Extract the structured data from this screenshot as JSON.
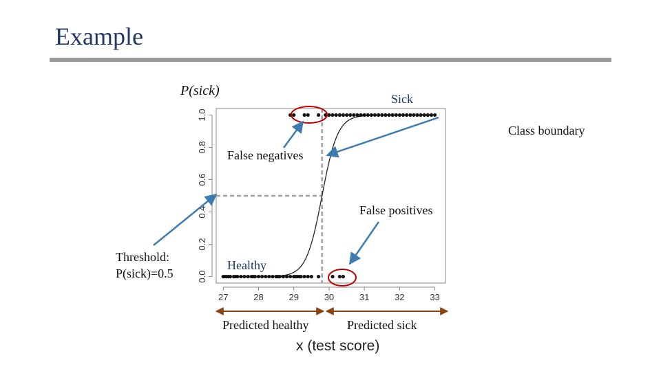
{
  "slide": {
    "title": "Example"
  },
  "chart_data": {
    "type": "scatter",
    "ylabel": "P(sick)",
    "xlabel": "x (test score)",
    "xlim": [
      26.8,
      33.3
    ],
    "ylim": [
      -0.04,
      1.04
    ],
    "x_ticks": [
      27,
      28,
      29,
      30,
      31,
      32,
      33
    ],
    "x_tick_labels": [
      "27",
      "28",
      "29",
      "30",
      "31",
      "32",
      "33"
    ],
    "y_ticks": [
      0.0,
      0.2,
      0.4,
      0.6,
      0.8,
      1.0
    ],
    "y_tick_labels": [
      "0.0",
      "0.2",
      "0.4",
      "0.6",
      "0.8",
      "1.0"
    ],
    "grid": false,
    "curve": {
      "kind": "logistic",
      "midpoint": 29.8,
      "steepness": 4.5
    },
    "threshold": {
      "x": 29.8,
      "y": 0.5
    },
    "series": [
      {
        "name": "Healthy",
        "y": 0,
        "x": [
          27.0,
          27.05,
          27.1,
          27.15,
          27.2,
          27.3,
          27.35,
          27.4,
          27.5,
          27.6,
          27.7,
          27.8,
          27.85,
          27.9,
          28.0,
          28.1,
          28.2,
          28.3,
          28.4,
          28.5,
          28.55,
          28.6,
          28.7,
          28.8,
          28.9,
          29.0,
          29.05,
          29.1,
          29.15,
          29.2,
          29.3,
          29.4,
          29.5,
          29.7,
          30.1,
          30.3,
          30.4
        ]
      },
      {
        "name": "Sick",
        "y": 1,
        "x": [
          28.9,
          29.0,
          29.3,
          29.4,
          29.7,
          29.9,
          30.0,
          30.1,
          30.2,
          30.3,
          30.4,
          30.5,
          30.6,
          30.7,
          30.8,
          30.9,
          31.0,
          31.1,
          31.2,
          31.3,
          31.4,
          31.5,
          31.6,
          31.7,
          31.8,
          31.9,
          32.0,
          32.1,
          32.2,
          32.3,
          32.4,
          32.5,
          32.6,
          32.7,
          32.8,
          32.9,
          33.0
        ]
      }
    ]
  },
  "annotations": {
    "sick": "Sick",
    "healthy": "Healthy",
    "class_boundary": "Class boundary",
    "false_negatives": "False negatives",
    "false_positives": "False positives",
    "threshold_line1": "Threshold:",
    "threshold_line2": "P(sick)=0.5",
    "predicted_healthy": "Predicted healthy",
    "predicted_sick": "Predicted sick"
  },
  "colors": {
    "title": "#1f3864",
    "rule": "#9a9a9a",
    "healthy_label": "#1f3864",
    "arrow": "#3e7bb0",
    "circle": "#c00000",
    "bracket": "#8b4513",
    "dashed": "#a0a0a0",
    "points": "#111111"
  }
}
